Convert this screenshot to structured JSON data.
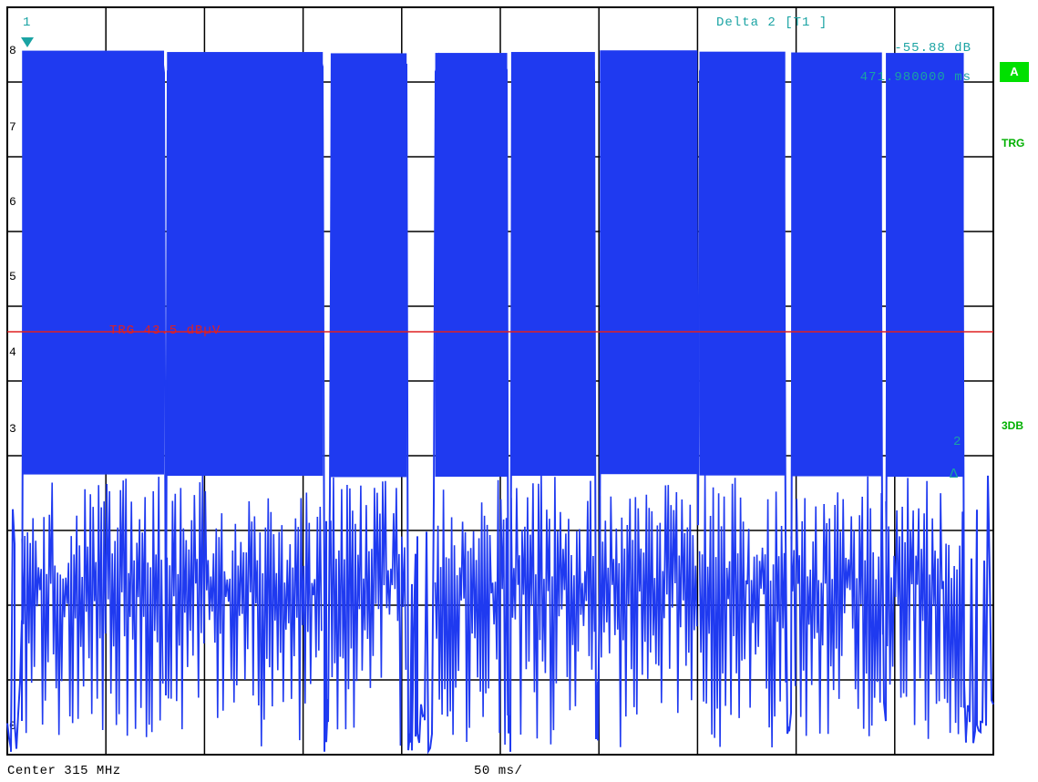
{
  "screen": {
    "center_label": "Center 315 MHz",
    "span_label": "50 ms/",
    "side_badge": "A",
    "side_trg": "TRG",
    "side_3db": "3DB"
  },
  "marker": {
    "header": "Delta 2 [T1 ]",
    "value": "-55.88 dB",
    "time": "471.980000 ms",
    "m1_label": "1",
    "m2_label": "2"
  },
  "colors": {
    "trace": "#1f3af0",
    "grid": "#000000",
    "trg_line": "#e02020",
    "marker": "#1aa3a3",
    "status": "#00d000"
  },
  "chart_data": {
    "type": "line",
    "title": "",
    "xlabel": "",
    "ylabel": "",
    "grid": true,
    "y_tick_labels": [
      "8",
      "7",
      "6",
      "5",
      "4",
      "3",
      "0"
    ],
    "trigger_level": {
      "label": "TRG 43.5 dBµV"
    },
    "bursts": [
      {
        "start_ms": 15,
        "end_ms": 159
      },
      {
        "start_ms": 162,
        "end_ms": 320
      },
      {
        "start_ms": 328,
        "end_ms": 405
      },
      {
        "start_ms": 434,
        "end_ms": 507
      },
      {
        "start_ms": 511,
        "end_ms": 596
      },
      {
        "start_ms": 601,
        "end_ms": 700
      },
      {
        "start_ms": 702,
        "end_ms": 789
      },
      {
        "start_ms": 795,
        "end_ms": 887
      },
      {
        "start_ms": 891,
        "end_ms": 970
      }
    ]
  }
}
